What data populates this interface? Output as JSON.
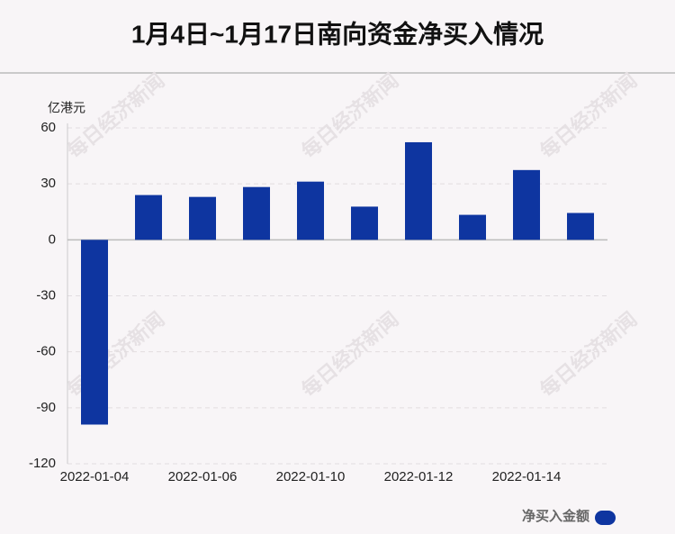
{
  "chart_data": {
    "type": "bar",
    "title": "1月4日~1月17日南向资金净买入情况",
    "y_label": "亿港元",
    "watermark": "每日经济新闻",
    "categories": [
      "2022-01-04",
      null,
      "2022-01-06",
      null,
      "2022-01-10",
      null,
      "2022-01-12",
      null,
      "2022-01-14",
      null
    ],
    "series": [
      {
        "name": "净买入金额",
        "color": "#0e35a0",
        "values": [
          -99,
          24.0,
          23.0,
          28.3,
          31.2,
          17.8,
          52.3,
          13.4,
          37.4,
          14.4
        ]
      }
    ],
    "ylim": [
      -120,
      60
    ],
    "yticks": [
      60,
      30,
      0,
      -30,
      -60,
      -90,
      -120
    ],
    "grid": true,
    "legend": "bottom-right"
  }
}
